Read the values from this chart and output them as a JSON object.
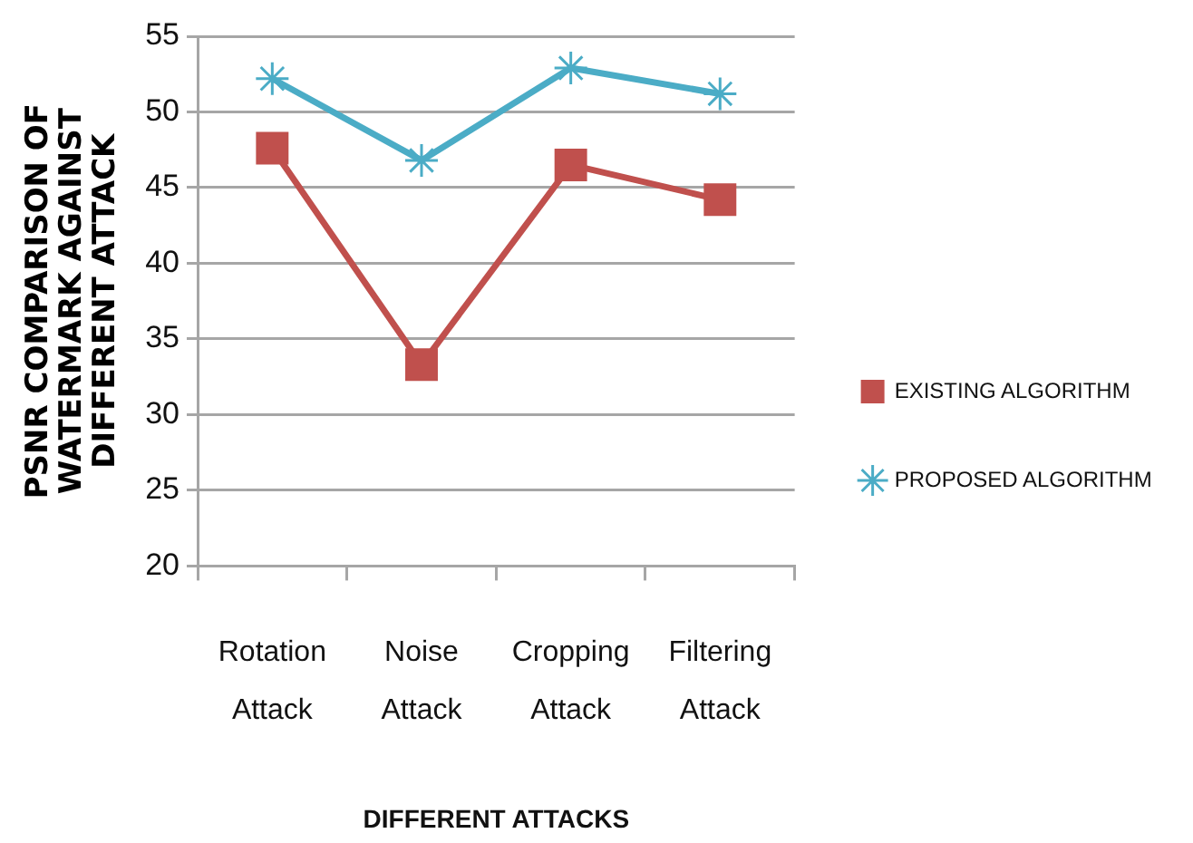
{
  "chart_data": {
    "type": "line",
    "ylabel": "PSNR COMPARISON OF WATERMARK AGAINST DIFFERENT ATTACK",
    "xlabel": "DIFFERENT ATTACKS",
    "categories": [
      "Rotation Attack",
      "Noise Attack",
      "Cropping Attack",
      "Filtering Attack"
    ],
    "series": [
      {
        "name": "EXISTING ALGORITHM",
        "color": "#c0504d",
        "marker": "square",
        "values": [
          47.6,
          33.3,
          46.5,
          44.2
        ]
      },
      {
        "name": "PROPOSED ALGORITHM",
        "color": "#4bacc6",
        "marker": "cross",
        "values": [
          52.2,
          46.8,
          52.9,
          51.2
        ]
      }
    ],
    "ylim": [
      20,
      55
    ],
    "yticks": [
      20,
      25,
      30,
      35,
      40,
      45,
      50,
      55
    ],
    "grid": "y",
    "legend": "right"
  }
}
